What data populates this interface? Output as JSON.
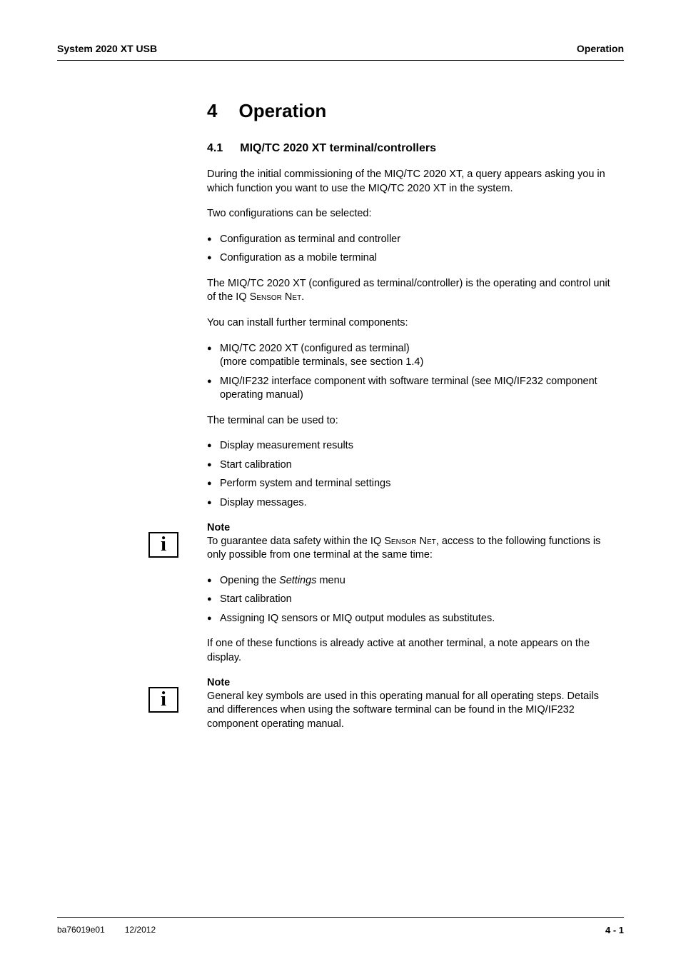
{
  "header": {
    "left": "System 2020 XT USB",
    "right": "Operation"
  },
  "chapter": {
    "number": "4",
    "title": "Operation"
  },
  "section": {
    "number": "4.1",
    "title": "MIQ/TC 2020 XT terminal/controllers"
  },
  "paragraphs": {
    "p1": "During the initial commissioning of the MIQ/TC 2020 XT, a query appears asking you in which function you want to use the MIQ/TC 2020 XT in the system.",
    "p2": "Two configurations can be selected:",
    "p3_part1": "The MIQ/TC 2020 XT (configured as terminal/controller) is the operating and control unit of the IQ ",
    "p3_smallcaps1": "Sensor",
    "p3_mid": " ",
    "p3_smallcaps2": "Net",
    "p3_part2": ".",
    "p4": "You can install further terminal components:",
    "p5": "The terminal can be used to:"
  },
  "lists": {
    "config": [
      "Configuration as terminal and controller",
      "Configuration as a mobile terminal"
    ],
    "components": [
      "MIQ/TC 2020 XT (configured as terminal)\n(more compatible terminals, see section 1.4)",
      "MIQ/IF232 interface component with software terminal (see MIQ/IF232 component operating manual)"
    ],
    "uses": [
      "Display measurement results",
      "Start calibration",
      "Perform system and terminal settings",
      "Display messages."
    ],
    "note1list": {
      "item1_pre": "Opening the ",
      "item1_italic": "Settings",
      "item1_post": " menu",
      "item2": "Start calibration",
      "item3": "Assigning IQ sensors or MIQ output modules as substitutes."
    }
  },
  "notes": {
    "note1": {
      "label": "Note",
      "text_pre": "To guarantee data safety within the IQ ",
      "text_sc1": "Sensor",
      "text_mid": " ",
      "text_sc2": "Net",
      "text_post": ", access to the following functions is only possible from one terminal at the same time:",
      "after": "If one of these functions is already active at another terminal, a note appears on the display."
    },
    "note2": {
      "label": "Note",
      "text": "General key symbols are used in this operating manual for all operating steps. Details and differences when using the software terminal can be found in the MIQ/IF232 component operating manual."
    }
  },
  "footer": {
    "code": "ba76019e01",
    "date": "12/2012",
    "page": "4 - 1"
  },
  "icon_glyph": "i"
}
